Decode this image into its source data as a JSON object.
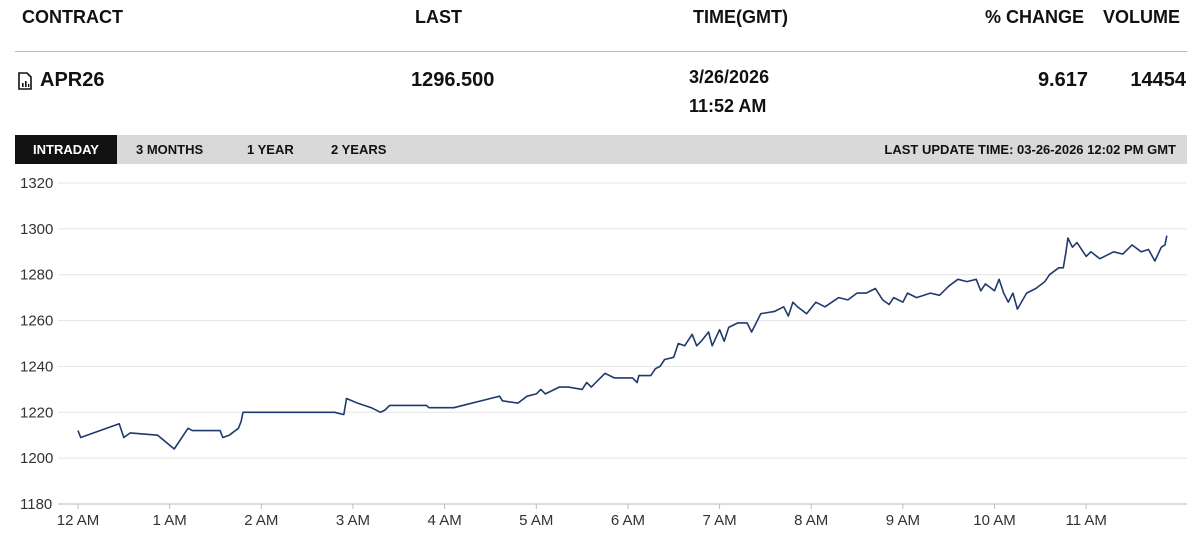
{
  "header": {
    "columns": [
      "CONTRACT",
      "LAST",
      "TIME(GMT)",
      "% CHANGE",
      "VOLUME"
    ]
  },
  "row": {
    "contract": "APR26",
    "last": "1296.500",
    "date": "3/26/2026",
    "time": "11:52 AM",
    "change": "9.617",
    "volume": "14454"
  },
  "tabs": [
    "INTRADAY",
    "3 MONTHS",
    "1 YEAR",
    "2 YEARS"
  ],
  "last_update": "LAST UPDATE TIME: 03-26-2026 12:02 PM GMT",
  "chart_data": {
    "type": "line",
    "color": "#1f3a6e",
    "grid": true,
    "xlim": [
      0,
      12.1
    ],
    "ylim": [
      1180,
      1320
    ],
    "yticks": [
      1180,
      1200,
      1220,
      1240,
      1260,
      1280,
      1300,
      1320
    ],
    "xticks": [
      {
        "value": 0,
        "label": "12 AM"
      },
      {
        "value": 1,
        "label": "1 AM"
      },
      {
        "value": 2,
        "label": "2 AM"
      },
      {
        "value": 3,
        "label": "3 AM"
      },
      {
        "value": 4,
        "label": "4 AM"
      },
      {
        "value": 5,
        "label": "5 AM"
      },
      {
        "value": 6,
        "label": "6 AM"
      },
      {
        "value": 7,
        "label": "7 AM"
      },
      {
        "value": 8,
        "label": "8 AM"
      },
      {
        "value": 9,
        "label": "9 AM"
      },
      {
        "value": 10,
        "label": "10 AM"
      },
      {
        "value": 11,
        "label": "11 AM"
      }
    ],
    "x": [
      0,
      0.03,
      0.45,
      0.5,
      0.57,
      0.87,
      1.05,
      1.2,
      1.25,
      1.55,
      1.58,
      1.65,
      1.75,
      1.78,
      1.8,
      2.5,
      2.8,
      2.9,
      2.93,
      3.05,
      3.2,
      3.3,
      3.35,
      3.4,
      3.8,
      3.83,
      4.1,
      4.5,
      4.6,
      4.63,
      4.8,
      4.9,
      5.0,
      5.05,
      5.1,
      5.25,
      5.35,
      5.5,
      5.55,
      5.6,
      5.65,
      5.75,
      5.85,
      6.05,
      6.1,
      6.12,
      6.25,
      6.3,
      6.35,
      6.4,
      6.5,
      6.55,
      6.62,
      6.7,
      6.75,
      6.8,
      6.88,
      6.92,
      7.0,
      7.05,
      7.1,
      7.2,
      7.3,
      7.35,
      7.45,
      7.6,
      7.7,
      7.75,
      7.8,
      7.85,
      7.95,
      8.05,
      8.15,
      8.3,
      8.4,
      8.5,
      8.6,
      8.7,
      8.78,
      8.85,
      8.9,
      9.0,
      9.05,
      9.15,
      9.3,
      9.4,
      9.5,
      9.6,
      9.7,
      9.8,
      9.85,
      9.9,
      10.0,
      10.05,
      10.1,
      10.15,
      10.2,
      10.25,
      10.35,
      10.45,
      10.55,
      10.6,
      10.7,
      10.75,
      10.78,
      10.8,
      10.85,
      10.9,
      11.0,
      11.05,
      11.15,
      11.3,
      11.4,
      11.5,
      11.6,
      11.68,
      11.75,
      11.82,
      11.86,
      11.88
    ],
    "values": [
      1212,
      1209,
      1215,
      1209,
      1211,
      1210,
      1204,
      1213,
      1212,
      1212,
      1209,
      1210,
      1213,
      1216,
      1220,
      1220,
      1220,
      1219,
      1226,
      1224,
      1222,
      1220,
      1221,
      1223,
      1223,
      1222,
      1222,
      1226,
      1227,
      1225,
      1224,
      1227,
      1228,
      1230,
      1228,
      1231,
      1231,
      1230,
      1233,
      1231,
      1233,
      1237,
      1235,
      1235,
      1233,
      1236,
      1236,
      1239,
      1240,
      1243,
      1244,
      1250,
      1249,
      1254,
      1249,
      1251,
      1255,
      1249,
      1256,
      1251,
      1257,
      1259,
      1259,
      1255,
      1263,
      1264,
      1266,
      1262,
      1268,
      1266,
      1263,
      1268,
      1266,
      1270,
      1269,
      1272,
      1272,
      1274,
      1269,
      1267,
      1270,
      1268,
      1272,
      1270,
      1272,
      1271,
      1275,
      1278,
      1277,
      1278,
      1273,
      1276,
      1273,
      1278,
      1272,
      1268,
      1272,
      1265,
      1272,
      1274,
      1277,
      1280,
      1283,
      1283,
      1290,
      1296,
      1292,
      1294,
      1288,
      1290,
      1287,
      1290,
      1289,
      1293,
      1290,
      1291,
      1286,
      1292,
      1293,
      1297
    ]
  }
}
